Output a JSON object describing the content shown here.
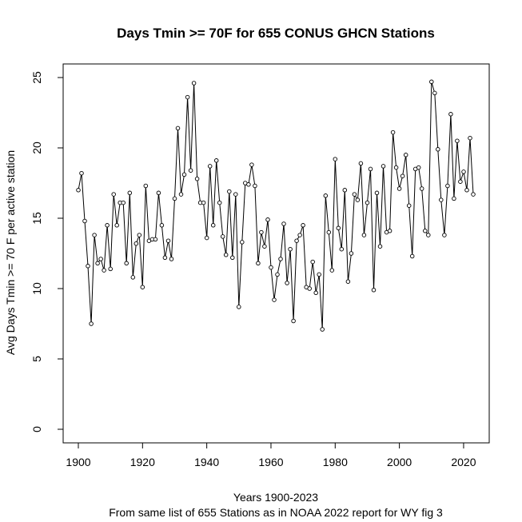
{
  "chart_data": {
    "type": "line",
    "title": "Days Tmin >= 70F for 655 CONUS GHCN Stations",
    "xlabel": "Years 1900-2023",
    "subtitle": "From same list of 655 Stations as in NOAA 2022 report for WY fig 3",
    "ylabel": "Avg Days Tmin >= 70 F per active station",
    "xlim": [
      1900,
      2023
    ],
    "ylim": [
      0,
      25
    ],
    "x_ticks": [
      1900,
      1920,
      1940,
      1960,
      1980,
      2000,
      2020
    ],
    "y_ticks": [
      0,
      5,
      10,
      15,
      20,
      25
    ],
    "grid": false,
    "marker": "open-circle",
    "series": [
      {
        "name": "Avg Days Tmin >= 70F",
        "x": [
          1900,
          1901,
          1902,
          1903,
          1904,
          1905,
          1906,
          1907,
          1908,
          1909,
          1910,
          1911,
          1912,
          1913,
          1914,
          1915,
          1916,
          1917,
          1918,
          1919,
          1920,
          1921,
          1922,
          1923,
          1924,
          1925,
          1926,
          1927,
          1928,
          1929,
          1930,
          1931,
          1932,
          1933,
          1934,
          1935,
          1936,
          1937,
          1938,
          1939,
          1940,
          1941,
          1942,
          1943,
          1944,
          1945,
          1946,
          1947,
          1948,
          1949,
          1950,
          1951,
          1952,
          1953,
          1954,
          1955,
          1956,
          1957,
          1958,
          1959,
          1960,
          1961,
          1962,
          1963,
          1964,
          1965,
          1966,
          1967,
          1968,
          1969,
          1970,
          1971,
          1972,
          1973,
          1974,
          1975,
          1976,
          1977,
          1978,
          1979,
          1980,
          1981,
          1982,
          1983,
          1984,
          1985,
          1986,
          1987,
          1988,
          1989,
          1990,
          1991,
          1992,
          1993,
          1994,
          1995,
          1996,
          1997,
          1998,
          1999,
          2000,
          2001,
          2002,
          2003,
          2004,
          2005,
          2006,
          2007,
          2008,
          2009,
          2010,
          2011,
          2012,
          2013,
          2014,
          2015,
          2016,
          2017,
          2018,
          2019,
          2020,
          2021,
          2022,
          2023
        ],
        "values": [
          17.0,
          18.2,
          14.8,
          11.6,
          7.5,
          13.8,
          11.8,
          12.1,
          11.3,
          14.5,
          11.4,
          16.7,
          14.5,
          16.1,
          16.1,
          11.8,
          16.8,
          10.8,
          13.2,
          13.8,
          10.1,
          17.3,
          13.4,
          13.5,
          13.5,
          16.8,
          14.5,
          12.2,
          13.4,
          12.1,
          16.4,
          21.4,
          16.7,
          18.1,
          23.6,
          18.4,
          24.6,
          17.8,
          16.1,
          16.1,
          13.6,
          18.7,
          14.5,
          19.1,
          16.1,
          13.7,
          12.4,
          16.9,
          12.2,
          16.7,
          8.7,
          13.3,
          17.5,
          17.4,
          18.8,
          17.3,
          11.8,
          14.0,
          13.0,
          14.9,
          11.5,
          9.2,
          11.0,
          12.1,
          14.6,
          10.4,
          12.8,
          7.7,
          13.4,
          13.8,
          14.5,
          10.1,
          10.0,
          11.9,
          9.7,
          11.0,
          7.1,
          16.6,
          14.0,
          11.3,
          19.2,
          14.3,
          12.8,
          17.0,
          10.5,
          12.5,
          16.7,
          16.3,
          18.9,
          13.8,
          16.1,
          18.5,
          9.9,
          16.8,
          13.0,
          18.7,
          14.0,
          14.1,
          21.1,
          18.6,
          17.1,
          18.0,
          19.5,
          15.9,
          12.3,
          18.5,
          18.6,
          17.1,
          14.1,
          13.8,
          24.7,
          23.9,
          19.9,
          16.3,
          13.8,
          17.3,
          22.4,
          16.4,
          20.5,
          17.6,
          18.3,
          17.0,
          20.7,
          16.7
        ]
      }
    ]
  }
}
